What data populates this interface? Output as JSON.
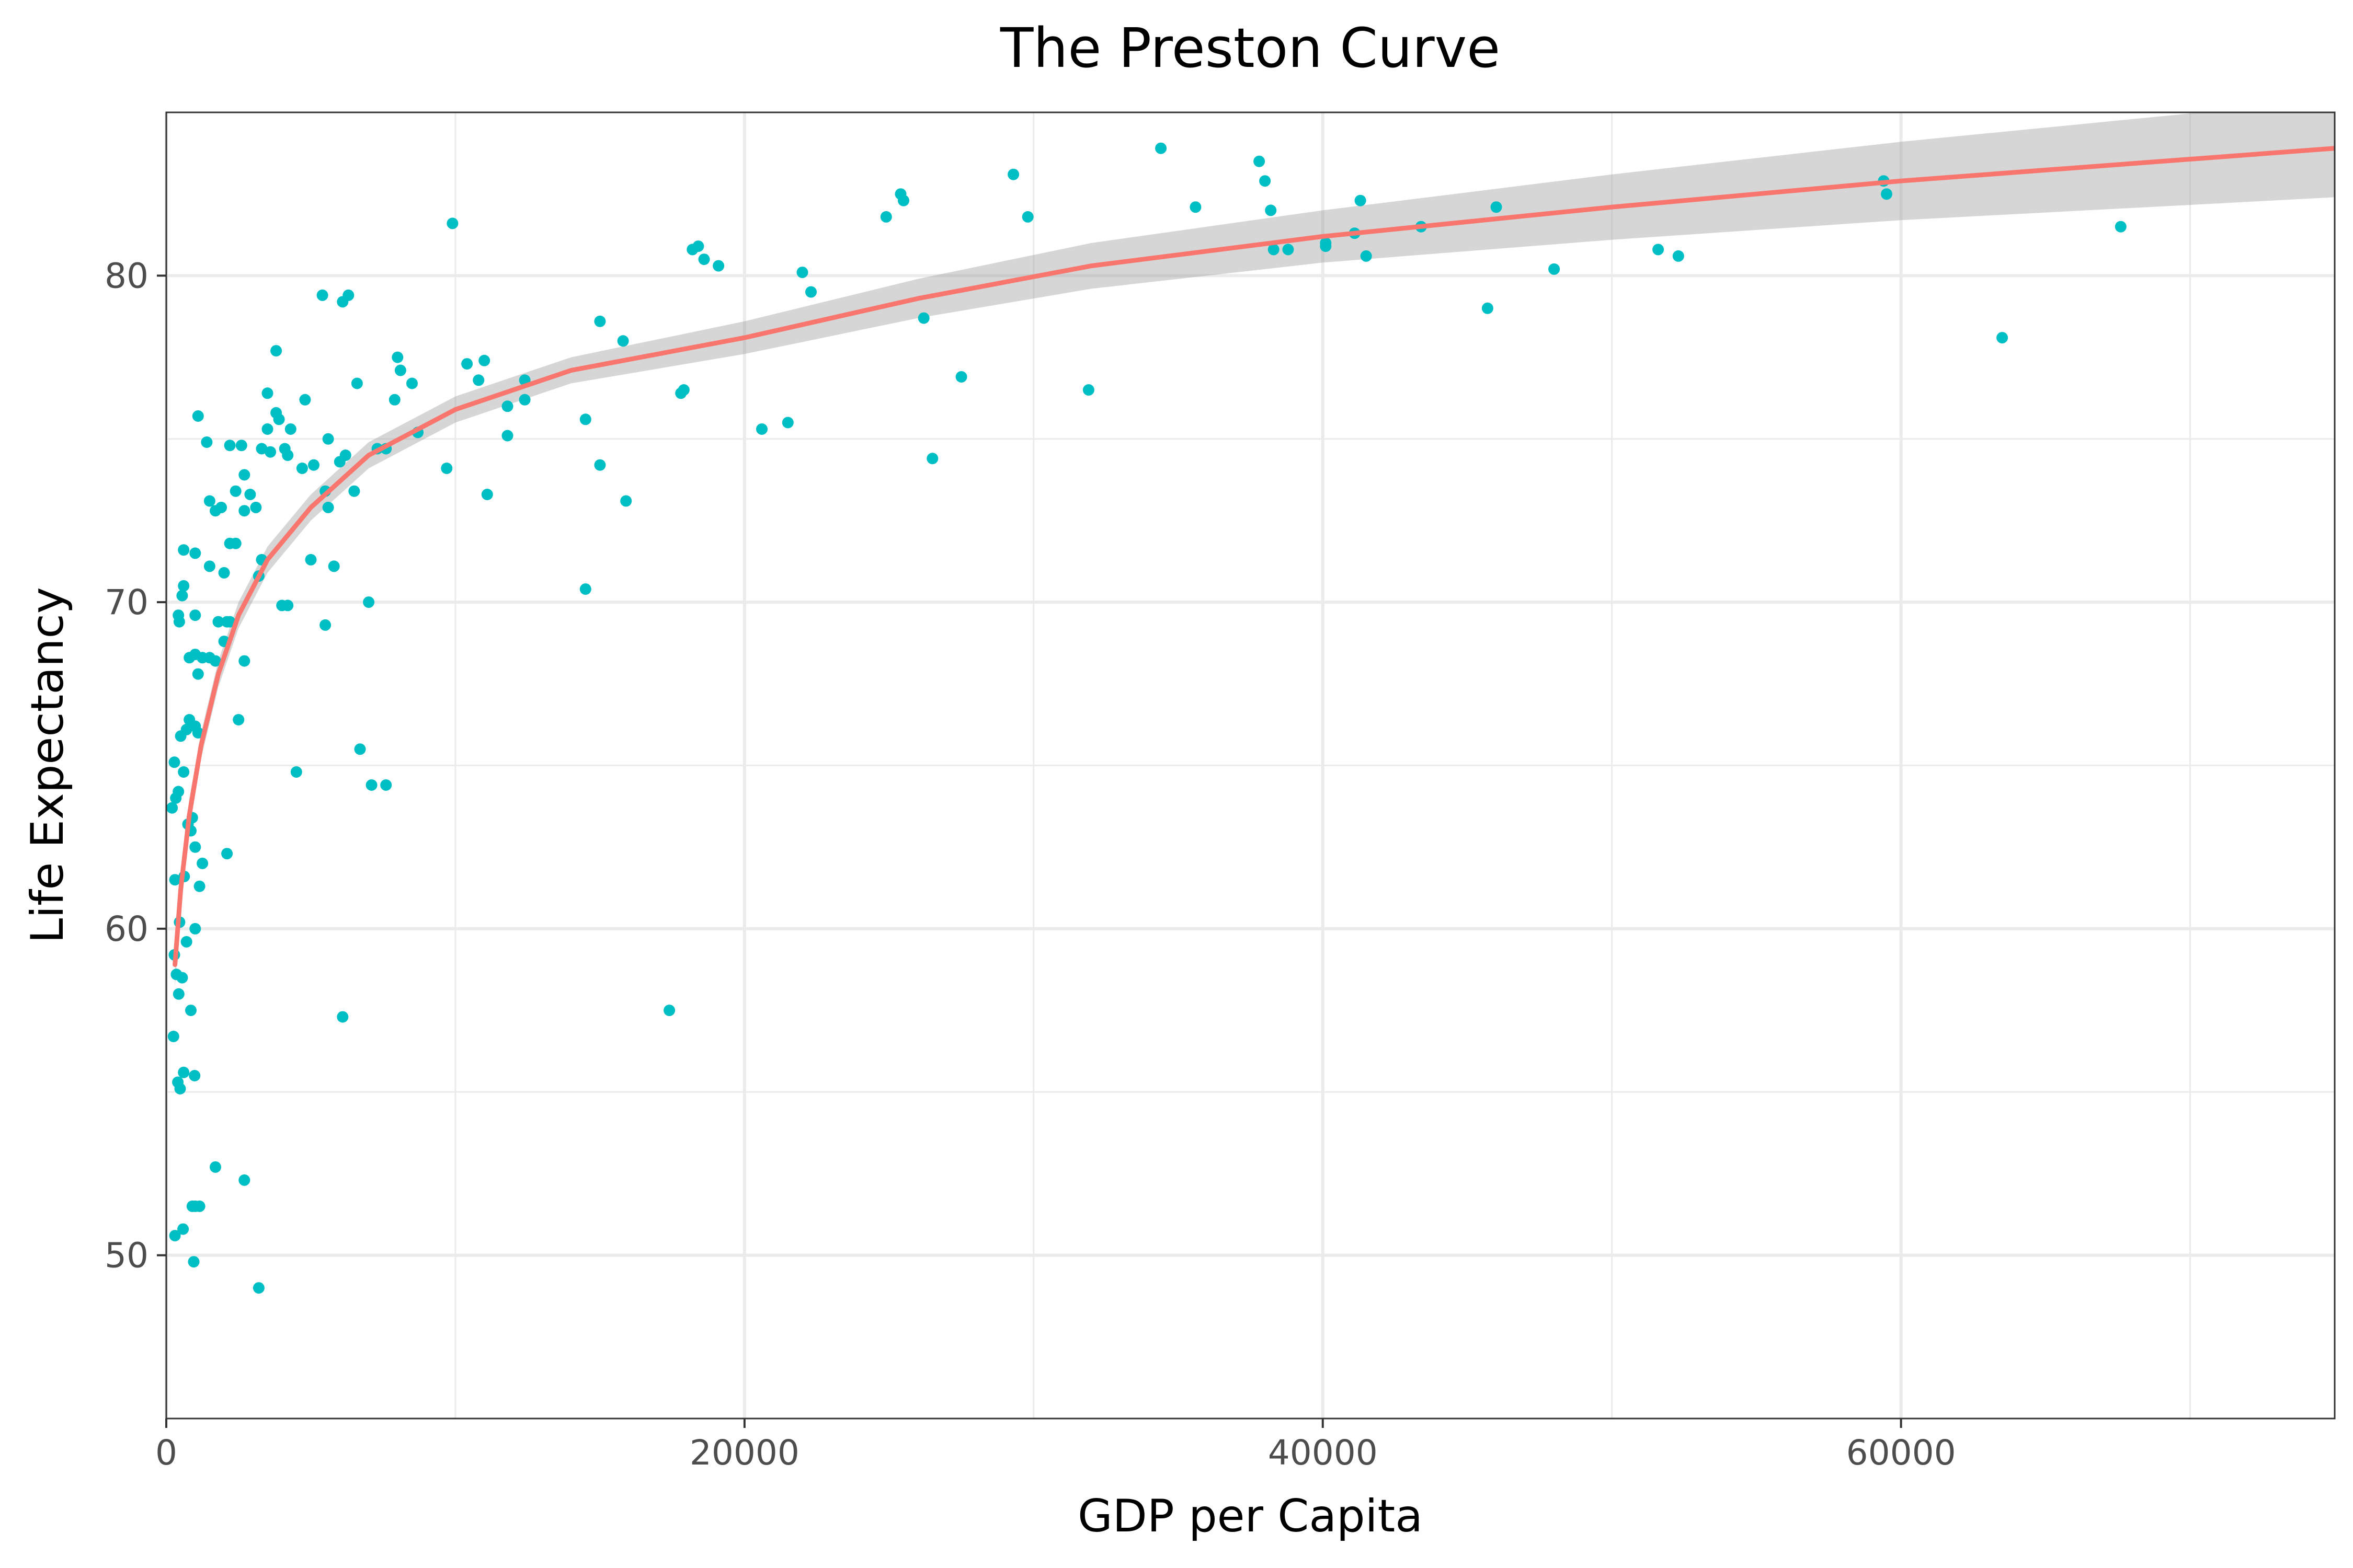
{
  "chart_data": {
    "type": "scatter",
    "title": "The Preston Curve",
    "xlabel": "GDP per Capita",
    "ylabel": "Life Expectancy",
    "xlim": [
      0,
      75000
    ],
    "ylim": [
      45,
      85
    ],
    "x_ticks": [
      0,
      20000,
      40000,
      60000
    ],
    "x_tick_labels": [
      "0",
      "20000",
      "40000",
      "60000"
    ],
    "y_ticks": [
      50,
      60,
      70,
      80
    ],
    "y_tick_labels": [
      "50",
      "60",
      "70",
      "80"
    ],
    "grid": true,
    "legend": "none",
    "colors": {
      "points": "#00BFC4",
      "fit_line": "#F8766D",
      "confidence_band": "#999999",
      "grid": "#ebebeb",
      "panel_border": "#333333"
    },
    "points": [
      [
        300,
        50.6
      ],
      [
        580,
        50.8
      ],
      [
        900,
        51.5
      ],
      [
        1000,
        51.5
      ],
      [
        1150,
        51.5
      ],
      [
        950,
        49.8
      ],
      [
        1700,
        52.7
      ],
      [
        2700,
        52.3
      ],
      [
        3200,
        49.0
      ],
      [
        400,
        55.3
      ],
      [
        250,
        56.7
      ],
      [
        600,
        55.6
      ],
      [
        480,
        55.1
      ],
      [
        980,
        55.5
      ],
      [
        850,
        57.5
      ],
      [
        6100,
        57.3
      ],
      [
        17400,
        57.5
      ],
      [
        350,
        58.6
      ],
      [
        430,
        58.0
      ],
      [
        550,
        58.5
      ],
      [
        280,
        59.2
      ],
      [
        460,
        60.2
      ],
      [
        700,
        59.6
      ],
      [
        1000,
        60.0
      ],
      [
        300,
        61.5
      ],
      [
        620,
        61.6
      ],
      [
        750,
        63.2
      ],
      [
        1000,
        62.5
      ],
      [
        1150,
        61.3
      ],
      [
        1250,
        62.0
      ],
      [
        2100,
        62.3
      ],
      [
        200,
        63.7
      ],
      [
        330,
        64.0
      ],
      [
        420,
        64.2
      ],
      [
        900,
        63.4
      ],
      [
        850,
        63.0
      ],
      [
        280,
        65.1
      ],
      [
        600,
        64.8
      ],
      [
        500,
        65.9
      ],
      [
        700,
        66.1
      ],
      [
        800,
        66.4
      ],
      [
        1000,
        66.2
      ],
      [
        1100,
        66.0
      ],
      [
        2500,
        66.4
      ],
      [
        4500,
        64.8
      ],
      [
        6700,
        65.5
      ],
      [
        7100,
        64.4
      ],
      [
        7600,
        64.4
      ],
      [
        420,
        69.6
      ],
      [
        450,
        69.4
      ],
      [
        550,
        70.2
      ],
      [
        600,
        70.5
      ],
      [
        800,
        68.3
      ],
      [
        1000,
        68.4
      ],
      [
        1100,
        67.8
      ],
      [
        1250,
        68.3
      ],
      [
        1500,
        68.3
      ],
      [
        1700,
        68.2
      ],
      [
        1800,
        69.4
      ],
      [
        2100,
        69.4
      ],
      [
        2200,
        69.4
      ],
      [
        2700,
        68.2
      ],
      [
        2000,
        68.8
      ],
      [
        1000,
        69.6
      ],
      [
        3200,
        70.8
      ],
      [
        4000,
        69.9
      ],
      [
        4200,
        69.9
      ],
      [
        5500,
        69.3
      ],
      [
        7000,
        70.0
      ],
      [
        14500,
        70.4
      ],
      [
        600,
        71.6
      ],
      [
        1000,
        71.5
      ],
      [
        1500,
        71.1
      ],
      [
        2000,
        70.9
      ],
      [
        2200,
        71.8
      ],
      [
        2400,
        71.8
      ],
      [
        3300,
        71.3
      ],
      [
        5000,
        71.3
      ],
      [
        5800,
        71.1
      ],
      [
        1700,
        72.8
      ],
      [
        1900,
        72.9
      ],
      [
        2700,
        72.8
      ],
      [
        3100,
        72.9
      ],
      [
        5600,
        72.9
      ],
      [
        1500,
        73.1
      ],
      [
        2400,
        73.4
      ],
      [
        2900,
        73.3
      ],
      [
        5500,
        73.4
      ],
      [
        6000,
        74.3
      ],
      [
        6500,
        73.4
      ],
      [
        11100,
        73.3
      ],
      [
        15900,
        73.1
      ],
      [
        2700,
        73.9
      ],
      [
        3600,
        74.6
      ],
      [
        4100,
        74.7
      ],
      [
        4200,
        74.5
      ],
      [
        4700,
        74.1
      ],
      [
        5100,
        74.2
      ],
      [
        6200,
        74.5
      ],
      [
        7300,
        74.7
      ],
      [
        7600,
        74.7
      ],
      [
        9700,
        74.1
      ],
      [
        15000,
        74.2
      ],
      [
        26500,
        74.4
      ],
      [
        1400,
        74.9
      ],
      [
        2200,
        74.8
      ],
      [
        2600,
        74.8
      ],
      [
        3300,
        74.7
      ],
      [
        3500,
        75.3
      ],
      [
        3900,
        75.6
      ],
      [
        4300,
        75.3
      ],
      [
        5600,
        75.0
      ],
      [
        8700,
        75.2
      ],
      [
        11800,
        75.1
      ],
      [
        14500,
        75.6
      ],
      [
        20600,
        75.3
      ],
      [
        21500,
        75.5
      ],
      [
        1100,
        75.7
      ],
      [
        3500,
        76.4
      ],
      [
        3800,
        75.8
      ],
      [
        4800,
        76.2
      ],
      [
        6600,
        76.7
      ],
      [
        7900,
        76.2
      ],
      [
        8500,
        76.7
      ],
      [
        11800,
        76.0
      ],
      [
        12400,
        76.2
      ],
      [
        17800,
        76.4
      ],
      [
        17900,
        76.5
      ],
      [
        31900,
        76.5
      ],
      [
        3800,
        77.7
      ],
      [
        8000,
        77.5
      ],
      [
        8100,
        77.1
      ],
      [
        10400,
        77.3
      ],
      [
        10800,
        76.8
      ],
      [
        11000,
        77.4
      ],
      [
        12400,
        76.8
      ],
      [
        15800,
        78.0
      ],
      [
        15000,
        78.6
      ],
      [
        27500,
        76.9
      ],
      [
        26200,
        78.7
      ],
      [
        22300,
        79.5
      ],
      [
        22000,
        80.1
      ],
      [
        19100,
        80.3
      ],
      [
        18600,
        80.5
      ],
      [
        18200,
        80.8
      ],
      [
        18400,
        80.9
      ],
      [
        5400,
        79.4
      ],
      [
        6100,
        79.2
      ],
      [
        6300,
        79.4
      ],
      [
        9900,
        81.6
      ],
      [
        24900,
        81.8
      ],
      [
        25400,
        82.5
      ],
      [
        25500,
        82.3
      ],
      [
        29800,
        81.8
      ],
      [
        29300,
        83.1
      ],
      [
        34400,
        83.9
      ],
      [
        35600,
        82.1
      ],
      [
        37800,
        83.5
      ],
      [
        38000,
        82.9
      ],
      [
        38200,
        82.0
      ],
      [
        38300,
        80.8
      ],
      [
        38800,
        80.8
      ],
      [
        40100,
        80.9
      ],
      [
        40100,
        81.0
      ],
      [
        41100,
        81.3
      ],
      [
        41300,
        82.3
      ],
      [
        41500,
        80.6
      ],
      [
        43400,
        81.5
      ],
      [
        45700,
        79.0
      ],
      [
        46000,
        82.1
      ],
      [
        48000,
        80.2
      ],
      [
        51600,
        80.8
      ],
      [
        52300,
        80.6
      ],
      [
        59400,
        82.9
      ],
      [
        59500,
        82.5
      ],
      [
        63500,
        78.1
      ],
      [
        67600,
        81.5
      ]
    ],
    "fit_curve": [
      [
        300,
        58.9
      ],
      [
        500,
        61.2
      ],
      [
        800,
        63.5
      ],
      [
        1200,
        65.6
      ],
      [
        1800,
        67.8
      ],
      [
        2500,
        69.6
      ],
      [
        3500,
        71.3
      ],
      [
        5000,
        72.9
      ],
      [
        7000,
        74.5
      ],
      [
        10000,
        75.9
      ],
      [
        14000,
        77.1
      ],
      [
        20000,
        78.1
      ],
      [
        26000,
        79.3
      ],
      [
        32000,
        80.3
      ],
      [
        40000,
        81.2
      ],
      [
        50000,
        82.1
      ],
      [
        60000,
        82.9
      ],
      [
        75000,
        83.9
      ]
    ],
    "band_upper": [
      [
        300,
        59.6
      ],
      [
        500,
        61.8
      ],
      [
        800,
        64.0
      ],
      [
        1200,
        66.0
      ],
      [
        1800,
        68.2
      ],
      [
        2500,
        70.0
      ],
      [
        3500,
        71.7
      ],
      [
        5000,
        73.3
      ],
      [
        7000,
        74.9
      ],
      [
        10000,
        76.3
      ],
      [
        14000,
        77.5
      ],
      [
        20000,
        78.6
      ],
      [
        26000,
        79.9
      ],
      [
        32000,
        81.0
      ],
      [
        40000,
        82.0
      ],
      [
        50000,
        83.1
      ],
      [
        60000,
        84.1
      ],
      [
        75000,
        85.4
      ]
    ],
    "band_lower": [
      [
        300,
        58.2
      ],
      [
        500,
        60.6
      ],
      [
        800,
        63.0
      ],
      [
        1200,
        65.2
      ],
      [
        1800,
        67.4
      ],
      [
        2500,
        69.2
      ],
      [
        3500,
        70.9
      ],
      [
        5000,
        72.5
      ],
      [
        7000,
        74.1
      ],
      [
        10000,
        75.5
      ],
      [
        14000,
        76.7
      ],
      [
        20000,
        77.6
      ],
      [
        26000,
        78.7
      ],
      [
        32000,
        79.6
      ],
      [
        40000,
        80.4
      ],
      [
        50000,
        81.1
      ],
      [
        60000,
        81.7
      ],
      [
        75000,
        82.4
      ]
    ]
  }
}
